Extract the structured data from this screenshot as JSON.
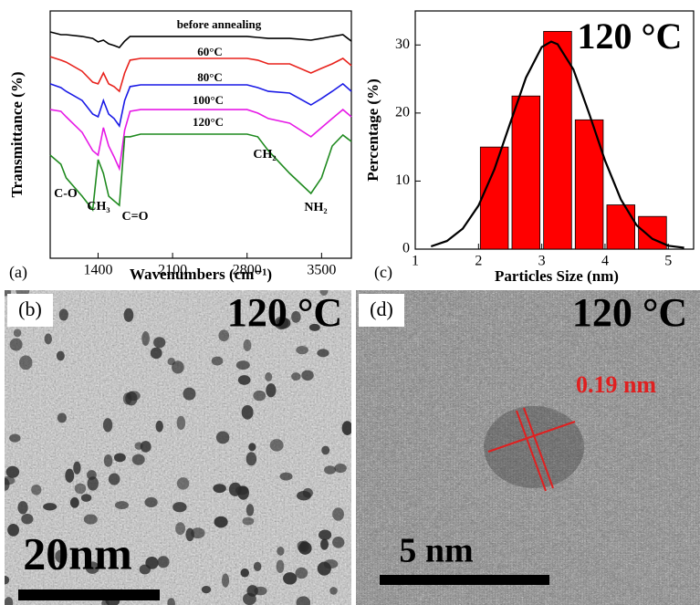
{
  "chart_data": [
    {
      "type": "line",
      "panel_label": "(a)",
      "xlabel": "Wavenumbers (cm⁻¹)",
      "ylabel": "Transmittance (%)",
      "xlim": [
        950,
        3780
      ],
      "ylim": [
        0,
        100
      ],
      "xticks": [
        1400,
        2100,
        2800,
        3500
      ],
      "x": [
        950,
        1050,
        1100,
        1250,
        1350,
        1400,
        1450,
        1500,
        1550,
        1600,
        1650,
        1700,
        1800,
        2100,
        2500,
        2800,
        2900,
        3000,
        3200,
        3400,
        3500,
        3600,
        3700,
        3780
      ],
      "series": [
        {
          "name": "before annealing",
          "color": "#000000",
          "values": [
            91.5,
            90.4,
            90.4,
            89.7,
            88.9,
            87.5,
            88.2,
            86.7,
            86.0,
            85.2,
            87.8,
            89.7,
            89.7,
            89.7,
            89.7,
            89.7,
            89.3,
            88.9,
            88.9,
            88.2,
            88.9,
            89.7,
            90.4,
            87.8
          ]
        },
        {
          "name": "60°C",
          "color": "#e8221c",
          "values": [
            81.5,
            80.1,
            79.3,
            75.6,
            71.2,
            70.5,
            74.9,
            70.5,
            69.4,
            67.5,
            74.9,
            80.1,
            80.8,
            80.8,
            80.8,
            80.8,
            80.1,
            78.6,
            78.6,
            74.9,
            76.8,
            78.6,
            80.8,
            77.9
          ]
        },
        {
          "name": "80°C",
          "color": "#1a1ae6",
          "values": [
            70.5,
            69.0,
            67.5,
            63.8,
            58.3,
            57.2,
            63.8,
            58.3,
            56.5,
            53.5,
            63.8,
            69.4,
            70.1,
            70.1,
            70.1,
            70.1,
            69.0,
            67.5,
            66.8,
            62.0,
            64.6,
            67.5,
            70.5,
            67.5
          ]
        },
        {
          "name": "100°C",
          "color": "#e619e6",
          "values": [
            60.1,
            59.4,
            57.2,
            50.9,
            43.5,
            41.7,
            52.8,
            45.4,
            41.0,
            36.2,
            51.8,
            59.4,
            60.1,
            60.1,
            60.1,
            60.1,
            58.7,
            56.5,
            54.6,
            49.1,
            52.8,
            56.5,
            60.1,
            57.2
          ]
        },
        {
          "name": "120°C",
          "color": "#1f8a1f",
          "values": [
            41.7,
            38.0,
            32.5,
            25.1,
            19.6,
            39.9,
            34.3,
            25.1,
            23.2,
            21.4,
            49.1,
            49.1,
            50.2,
            50.2,
            50.2,
            50.2,
            49.1,
            43.5,
            34.3,
            26.2,
            32.5,
            45.4,
            49.8,
            47.2
          ]
        }
      ],
      "annotations": [
        "C-O",
        "CH₃",
        "C=O",
        "CH₂",
        "NH₂"
      ]
    },
    {
      "type": "histogram",
      "panel_label": "(c)",
      "title": "120 °C",
      "xlabel": "Particles Size (nm)",
      "ylabel": "Percentage (%)",
      "xlim": [
        1,
        5.4
      ],
      "ylim": [
        0,
        35
      ],
      "xticks": [
        1,
        2,
        3,
        4,
        5
      ],
      "yticks": [
        0,
        10,
        20,
        30
      ],
      "bins": [
        2,
        2.5,
        3,
        3.5,
        4,
        4.5,
        5
      ],
      "values": [
        15,
        22.5,
        32,
        19,
        6.5,
        4.8
      ],
      "color": "#ff0000",
      "fit": {
        "color": "#000000",
        "x": [
          1.25,
          1.5,
          1.75,
          2.0,
          2.25,
          2.5,
          2.75,
          3.0,
          3.15,
          3.25,
          3.5,
          3.75,
          4.0,
          4.25,
          4.5,
          4.75,
          5.0,
          5.25
        ],
        "values": [
          0.4,
          1.2,
          3.0,
          6.4,
          11.7,
          18.5,
          25.2,
          29.7,
          30.5,
          30.1,
          26.4,
          19.9,
          13.0,
          7.3,
          3.5,
          1.5,
          0.5,
          0.2
        ]
      }
    }
  ],
  "images": [
    {
      "label": "(b)",
      "title": "120 °C",
      "scale_bar": "20nm"
    },
    {
      "label": "(d)",
      "title": "120 °C",
      "annotation": "0.19 nm",
      "scale_bar": "5 nm"
    }
  ]
}
